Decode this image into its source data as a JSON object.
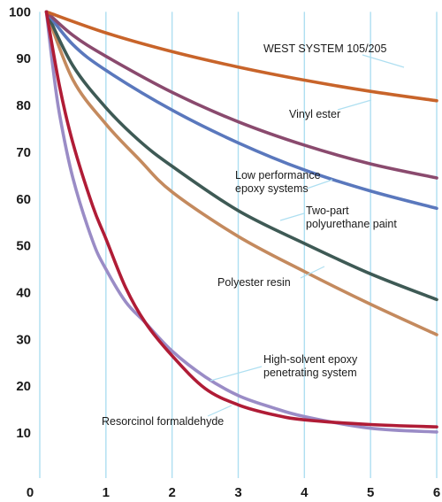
{
  "chart_data": {
    "type": "line",
    "title": "",
    "xlabel": "",
    "ylabel": "",
    "xlim": [
      0,
      6
    ],
    "ylim": [
      0,
      100
    ],
    "grid": "vertical lines at integer x",
    "x_ticks": [
      "0",
      "1",
      "2",
      "3",
      "4",
      "5",
      "6"
    ],
    "y_ticks": [
      "10",
      "20",
      "30",
      "40",
      "50",
      "60",
      "70",
      "80",
      "90",
      "100"
    ],
    "series": [
      {
        "name": "WEST SYSTEM 105/205",
        "color": "#c8642a",
        "x": [
          0.1,
          1,
          2,
          3,
          4,
          5,
          6
        ],
        "y": [
          100,
          95.5,
          91.5,
          88.2,
          85.4,
          83.0,
          81.0
        ]
      },
      {
        "name": "Vinyl ester",
        "color": "#8a4a6e",
        "x": [
          0.1,
          0.5,
          1,
          2,
          3,
          4,
          5,
          6
        ],
        "y": [
          100,
          95.0,
          90.5,
          82.8,
          76.5,
          71.5,
          67.5,
          64.5
        ]
      },
      {
        "name": "Low performance epoxy systems",
        "color": "#5a78bd",
        "x": [
          0.1,
          0.5,
          1,
          2,
          3,
          4,
          5,
          6
        ],
        "y": [
          100,
          93.0,
          87.5,
          79.0,
          72.0,
          66.2,
          61.7,
          58.0
        ]
      },
      {
        "name": "Two-part polyurethane paint",
        "color": "#3e5a55",
        "x": [
          0.1,
          0.5,
          1,
          1.5,
          2,
          3,
          4,
          5,
          6
        ],
        "y": [
          100,
          88.5,
          79.5,
          72.5,
          67.0,
          57.5,
          50.5,
          44.0,
          38.5
        ]
      },
      {
        "name": "Polyester resin",
        "color": "#c48a5e",
        "x": [
          0.1,
          0.5,
          1,
          1.5,
          2,
          3,
          4,
          5,
          6
        ],
        "y": [
          100,
          85.5,
          76.0,
          68.5,
          61.5,
          52.0,
          44.5,
          37.5,
          31.0
        ]
      },
      {
        "name": "Resorcinol formaldehyde",
        "color": "#b01c36",
        "x": [
          0.1,
          0.3,
          0.5,
          0.8,
          1,
          1.3,
          1.6,
          2,
          2.5,
          3,
          3.5,
          4,
          5,
          6
        ],
        "y": [
          100,
          84.0,
          72.0,
          58.5,
          51.5,
          41.0,
          33.5,
          26.5,
          19.5,
          16.0,
          14.0,
          12.8,
          11.8,
          11.3
        ]
      },
      {
        "name": "High-solvent epoxy penetrating system",
        "color": "#9a8cc6",
        "x": [
          0.1,
          0.2,
          0.3,
          0.5,
          0.8,
          1,
          1.3,
          1.6,
          2,
          2.5,
          3,
          3.5,
          4,
          5,
          6
        ],
        "y": [
          100,
          88.0,
          78.0,
          64.5,
          51.0,
          45.0,
          38.0,
          33.5,
          27.5,
          22.0,
          18.0,
          15.5,
          13.5,
          11.0,
          10.2
        ]
      }
    ],
    "annotations": [
      {
        "lines": [
          "WEST SYSTEM 105/205"
        ],
        "series": 0
      },
      {
        "lines": [
          "Vinyl ester"
        ],
        "series": 1
      },
      {
        "lines": [
          "Low performance",
          "epoxy systems"
        ],
        "series": 2
      },
      {
        "lines": [
          "Two-part",
          "polyurethane paint"
        ],
        "series": 3
      },
      {
        "lines": [
          "Polyester resin"
        ],
        "series": 4
      },
      {
        "lines": [
          "High-solvent epoxy",
          "penetrating system"
        ],
        "series": 6
      },
      {
        "lines": [
          "Resorcinol formaldehyde"
        ],
        "series": 5
      }
    ]
  }
}
